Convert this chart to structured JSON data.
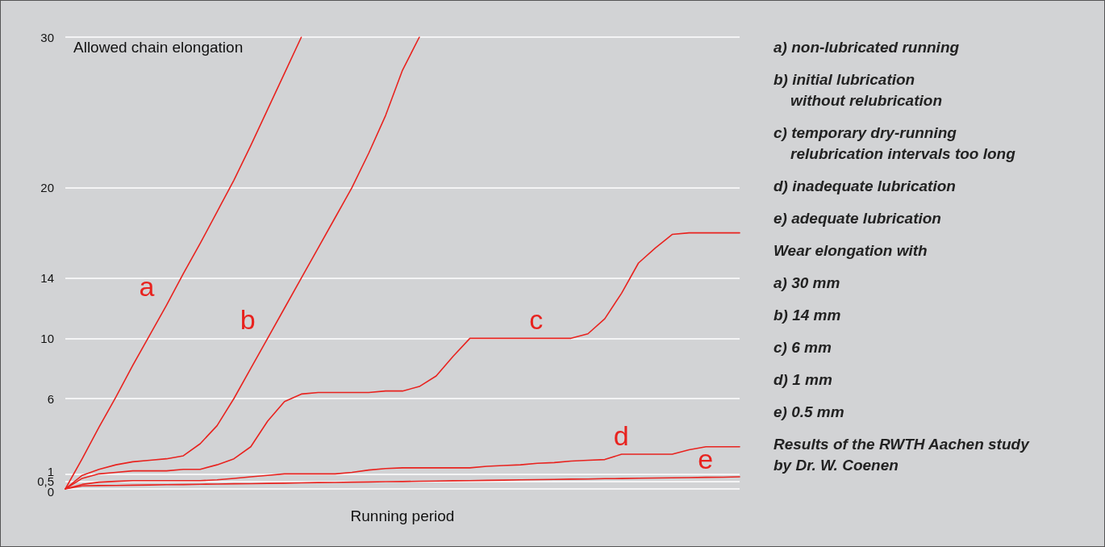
{
  "chart_data": {
    "type": "line",
    "ylabel": "Allowed chain elongation",
    "xlabel": "Running period",
    "categories": [
      null,
      null,
      null,
      null,
      null,
      null,
      null,
      null,
      null,
      null,
      null,
      null,
      null,
      null,
      null,
      null,
      null,
      null,
      null,
      null,
      null,
      null,
      null,
      null,
      null,
      null,
      null,
      null,
      null,
      null,
      null,
      null,
      null,
      null,
      null,
      null,
      null,
      null,
      null,
      null,
      null
    ],
    "series": [
      {
        "name": "a",
        "color": "#e8231f",
        "values": [
          0,
          2,
          4.1,
          6.1,
          8.2,
          10.2,
          12.2,
          14.3,
          16.3,
          18.4,
          20.5,
          22.8,
          25.2,
          27.6,
          30,
          null,
          null,
          null,
          null,
          null,
          null,
          null,
          null,
          null,
          null,
          null,
          null,
          null,
          null,
          null,
          null,
          null,
          null,
          null,
          null,
          null,
          null,
          null,
          null,
          null,
          null
        ]
      },
      {
        "name": "b",
        "color": "#e8231f",
        "values": [
          0,
          0.9,
          1.3,
          1.6,
          1.8,
          1.9,
          2.0,
          2.2,
          3.0,
          4.2,
          6.0,
          8.0,
          10.0,
          12.0,
          14.0,
          16.0,
          18.0,
          20.0,
          22.3,
          24.8,
          27.8,
          30,
          null,
          null,
          null,
          null,
          null,
          null,
          null,
          null,
          null,
          null,
          null,
          null,
          null,
          null,
          null,
          null,
          null,
          null,
          null
        ]
      },
      {
        "name": "c",
        "color": "#e8231f",
        "values": [
          0,
          0.7,
          1.0,
          1.1,
          1.2,
          1.2,
          1.2,
          1.3,
          1.3,
          1.6,
          2.0,
          2.8,
          4.5,
          5.8,
          6.3,
          6.4,
          6.4,
          6.4,
          6.4,
          6.5,
          6.5,
          6.8,
          7.5,
          8.8,
          10,
          10,
          10,
          10,
          10,
          10,
          10,
          10.3,
          11.3,
          13,
          15,
          16,
          16.9,
          17,
          17,
          17,
          17
        ]
      },
      {
        "name": "d",
        "color": "#e8231f",
        "values": [
          0,
          0.3,
          0.45,
          0.5,
          0.55,
          0.55,
          0.55,
          0.55,
          0.55,
          0.6,
          0.7,
          0.8,
          0.9,
          1.0,
          1.0,
          1.0,
          1.0,
          1.1,
          1.25,
          1.35,
          1.4,
          1.4,
          1.4,
          1.4,
          1.4,
          1.5,
          1.55,
          1.6,
          1.7,
          1.75,
          1.85,
          1.9,
          1.95,
          2.3,
          2.3,
          2.3,
          2.3,
          2.6,
          2.8,
          2.8,
          2.8
        ]
      },
      {
        "name": "e",
        "color": "#e8231f",
        "values": [
          0,
          0.2,
          0.22,
          0.23,
          0.25,
          0.26,
          0.28,
          0.29,
          0.31,
          0.32,
          0.34,
          0.35,
          0.37,
          0.38,
          0.4,
          0.42,
          0.43,
          0.45,
          0.46,
          0.48,
          0.49,
          0.51,
          0.52,
          0.54,
          0.55,
          0.57,
          0.58,
          0.6,
          0.62,
          0.63,
          0.65,
          0.66,
          0.68,
          0.69,
          0.71,
          0.72,
          0.74,
          0.75,
          0.77,
          0.78,
          0.8
        ]
      }
    ],
    "ylim": [
      0,
      30
    ],
    "yticks": [
      0,
      {
        "value": 0.5,
        "label": "0,5"
      },
      1,
      6,
      10,
      14,
      20,
      30
    ],
    "grid": "y",
    "legend": false,
    "tick_labels": "y",
    "marker": "none",
    "line_style": "solid",
    "annotations": [
      "a) non-lubricated running",
      "b) initial lubrication\n    without relubrication",
      "c) temporary dry-running\n    relubrication intervals too long",
      "d) inadequate lubrication",
      "e) adequate lubrication",
      "Wear elongation with",
      "a) 30 mm",
      "b) 14 mm",
      "c) 6 mm",
      "d) 1 mm",
      "e) 0.5 mm",
      "Results of the RWTH Aachen study\nby Dr. W. Coenen"
    ]
  }
}
